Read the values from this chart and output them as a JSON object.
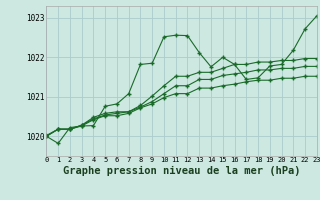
{
  "background_color": "#cce8e0",
  "grid_color": "#aacccc",
  "line_color": "#1a6b2a",
  "title": "Graphe pression niveau de la mer (hPa)",
  "title_fontsize": 7.5,
  "xlim": [
    0,
    23
  ],
  "ylim": [
    1019.5,
    1023.3
  ],
  "yticks": [
    1020,
    1021,
    1022,
    1023
  ],
  "xtick_labels": [
    "0",
    "1",
    "2",
    "3",
    "4",
    "5",
    "6",
    "7",
    "8",
    "9",
    "10",
    "11",
    "12",
    "13",
    "14",
    "15",
    "16",
    "17",
    "18",
    "19",
    "20",
    "21",
    "22",
    "23"
  ],
  "series": [
    [
      1020.0,
      1019.82,
      1020.22,
      1020.26,
      1020.27,
      1020.76,
      1020.82,
      1021.08,
      1021.82,
      1021.85,
      1022.52,
      1022.56,
      1022.55,
      1022.12,
      1021.76,
      1022.0,
      1021.82,
      1021.44,
      1021.48,
      1021.78,
      1021.82,
      1022.18,
      1022.72,
      1023.05
    ],
    [
      1020.0,
      1020.18,
      1020.18,
      1020.28,
      1020.48,
      1020.58,
      1020.62,
      1020.62,
      1020.78,
      1021.02,
      1021.28,
      1021.52,
      1021.52,
      1021.62,
      1021.62,
      1021.72,
      1021.82,
      1021.82,
      1021.88,
      1021.88,
      1021.92,
      1021.92,
      1021.97,
      1021.97
    ],
    [
      1020.0,
      1020.18,
      1020.18,
      1020.28,
      1020.44,
      1020.54,
      1020.58,
      1020.62,
      1020.74,
      1020.88,
      1021.08,
      1021.28,
      1021.28,
      1021.44,
      1021.44,
      1021.54,
      1021.58,
      1021.62,
      1021.68,
      1021.68,
      1021.72,
      1021.72,
      1021.77,
      1021.77
    ],
    [
      1020.02,
      1020.18,
      1020.18,
      1020.26,
      1020.42,
      1020.52,
      1020.52,
      1020.58,
      1020.72,
      1020.82,
      1020.98,
      1021.08,
      1021.08,
      1021.22,
      1021.22,
      1021.28,
      1021.32,
      1021.38,
      1021.42,
      1021.42,
      1021.47,
      1021.47,
      1021.52,
      1021.52
    ]
  ]
}
